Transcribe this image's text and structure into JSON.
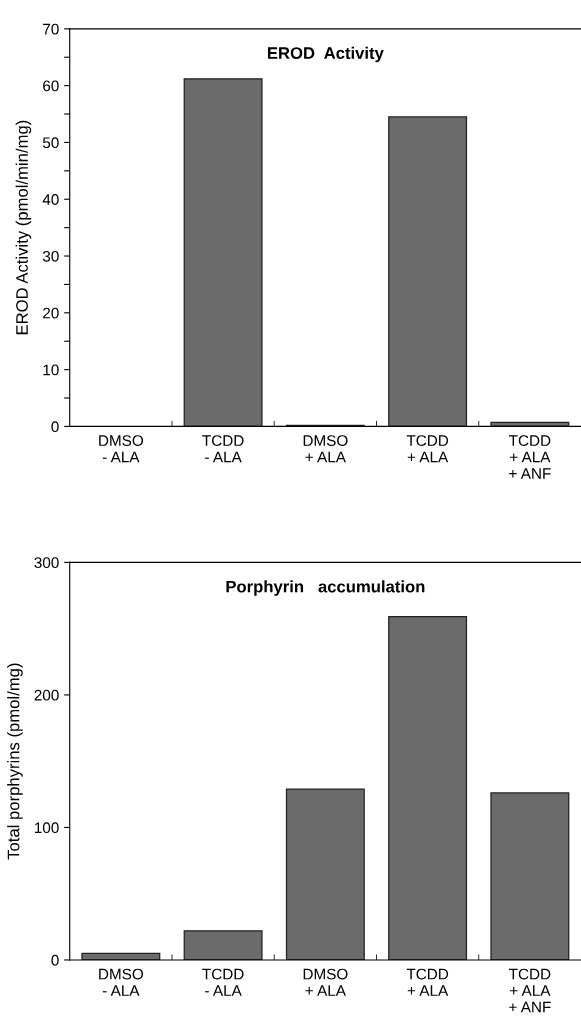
{
  "chart_data": [
    {
      "type": "bar",
      "title": "EROD  Activity",
      "ylabel": "EROD Activity (pmol/min/mg)",
      "categories": [
        "DMSO\n- ALA",
        "TCDD\n- ALA",
        "DMSO\n+ ALA",
        "TCDD\n+ ALA",
        "TCDD\n+ ALA\n+ ANF"
      ],
      "values": [
        0,
        61.2,
        0.2,
        54.5,
        0.7
      ],
      "color": "#6b6b6b",
      "ylim": [
        0,
        70
      ],
      "yticks": [
        0,
        {
          "value": 5,
          "label": null
        },
        10,
        {
          "value": 15,
          "label": null
        },
        20,
        {
          "value": 25,
          "label": null
        },
        30,
        {
          "value": 35,
          "label": null
        },
        40,
        {
          "value": 45,
          "label": null
        },
        50,
        {
          "value": 55,
          "label": null
        },
        60,
        {
          "value": 65,
          "label": null
        },
        70
      ],
      "grid": false,
      "legend": false
    },
    {
      "type": "bar",
      "title": "Porphyrin   accumulation",
      "ylabel": "Total porphyrins (pmol/mg)",
      "categories": [
        "DMSO\n- ALA",
        "TCDD\n- ALA",
        "DMSO\n+ ALA",
        "TCDD\n+ ALA",
        "TCDD\n+ ALA\n+ ANF"
      ],
      "values": [
        5,
        22,
        129,
        259,
        126
      ],
      "color": "#6b6b6b",
      "ylim": [
        0,
        300
      ],
      "yticks": [
        0,
        100,
        200,
        300
      ],
      "grid": false,
      "legend": false
    }
  ]
}
